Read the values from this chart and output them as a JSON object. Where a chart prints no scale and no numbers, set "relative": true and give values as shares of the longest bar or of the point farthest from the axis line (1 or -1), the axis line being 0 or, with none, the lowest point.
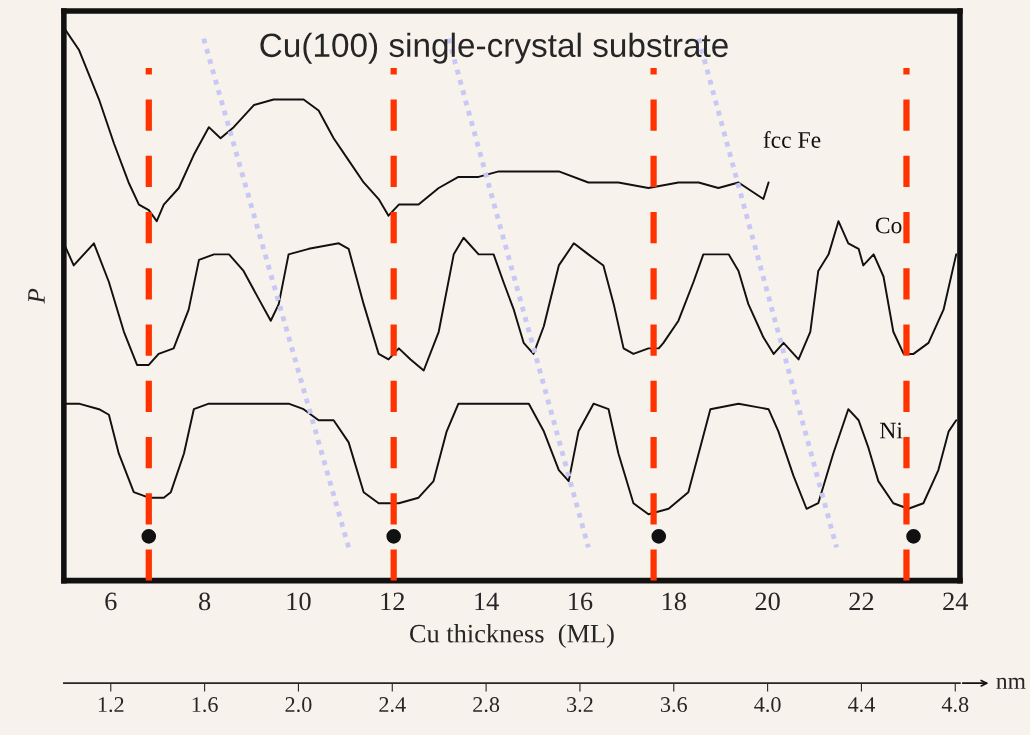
{
  "chart_data": {
    "type": "line",
    "title": "Cu(100) single-crystal substrate",
    "xlabel": "Cu thickness  (ML)",
    "ylabel": "P",
    "x2label": "nm",
    "relative": true,
    "xlim": [
      5,
      24.1
    ],
    "xticks": [
      6,
      8,
      10,
      12,
      14,
      16,
      18,
      20,
      22,
      24
    ],
    "x2lim": [
      1.0,
      4.82
    ],
    "x2ticks": [
      1.2,
      1.6,
      {
        "value": 2,
        "label": "2.0"
      },
      2.4,
      2.8,
      3.2,
      3.6,
      {
        "value": 4,
        "label": "4.0"
      },
      4.4,
      4.8
    ],
    "grid": false,
    "legend": false,
    "marker": "none",
    "line_style": "solid",
    "series": [
      {
        "name": "fcc Fe",
        "color": "#111111",
        "x": [
          5.0,
          5.32,
          5.75,
          6.07,
          6.38,
          6.6,
          6.81,
          6.98,
          7.13,
          7.45,
          7.77,
          8.09,
          8.34,
          8.62,
          9.05,
          9.47,
          9.79,
          10.11,
          10.43,
          10.75,
          11.07,
          11.39,
          11.71,
          11.92,
          12.14,
          12.56,
          12.99,
          13.41,
          13.84,
          14.27,
          14.91,
          15.55,
          16.18,
          16.82,
          17.46,
          18.1,
          18.53,
          18.95,
          19.38,
          19.91,
          20.02
        ],
        "values": [
          1.0,
          0.96,
          0.87,
          0.79,
          0.72,
          0.68,
          0.67,
          0.65,
          0.68,
          0.71,
          0.77,
          0.82,
          0.8,
          0.82,
          0.86,
          0.87,
          0.87,
          0.87,
          0.85,
          0.8,
          0.76,
          0.72,
          0.69,
          0.66,
          0.68,
          0.68,
          0.71,
          0.73,
          0.73,
          0.74,
          0.74,
          0.74,
          0.72,
          0.72,
          0.71,
          0.72,
          0.72,
          0.71,
          0.72,
          0.69,
          0.72
        ]
      },
      {
        "name": "Co",
        "color": "#111111",
        "x": [
          5.0,
          5.21,
          5.64,
          5.96,
          6.28,
          6.56,
          6.81,
          7.02,
          7.34,
          7.66,
          7.88,
          8.2,
          8.52,
          8.83,
          9.15,
          9.41,
          9.58,
          9.79,
          10.22,
          10.86,
          11.07,
          11.39,
          11.71,
          11.92,
          12.14,
          12.39,
          12.67,
          12.99,
          13.31,
          13.52,
          13.84,
          14.16,
          14.37,
          14.59,
          14.8,
          15.01,
          15.23,
          15.55,
          15.87,
          16.18,
          16.5,
          16.72,
          16.93,
          17.14,
          17.46,
          17.68,
          17.78,
          18.1,
          18.42,
          18.63,
          18.95,
          19.17,
          19.38,
          19.59,
          19.91,
          20.13,
          20.34,
          20.66,
          20.91,
          21.08,
          21.3,
          21.51,
          21.72,
          21.94,
          22.04,
          22.26,
          22.47,
          22.68,
          22.9,
          23.11,
          23.43,
          23.75,
          24.02
        ],
        "values": [
          0.61,
          0.57,
          0.61,
          0.54,
          0.45,
          0.39,
          0.39,
          0.41,
          0.42,
          0.49,
          0.58,
          0.59,
          0.59,
          0.56,
          0.51,
          0.47,
          0.5,
          0.59,
          0.6,
          0.61,
          0.6,
          0.5,
          0.41,
          0.4,
          0.42,
          0.4,
          0.38,
          0.45,
          0.59,
          0.62,
          0.59,
          0.59,
          0.54,
          0.49,
          0.43,
          0.41,
          0.46,
          0.57,
          0.61,
          0.59,
          0.57,
          0.5,
          0.42,
          0.41,
          0.42,
          0.42,
          0.43,
          0.47,
          0.54,
          0.59,
          0.59,
          0.59,
          0.56,
          0.5,
          0.44,
          0.41,
          0.43,
          0.4,
          0.45,
          0.56,
          0.59,
          0.65,
          0.61,
          0.6,
          0.57,
          0.59,
          0.55,
          0.45,
          0.41,
          0.41,
          0.43,
          0.49,
          0.59
        ]
      },
      {
        "name": "Ni",
        "color": "#111111",
        "x": [
          5.0,
          5.32,
          5.75,
          5.96,
          6.17,
          6.49,
          6.81,
          7.13,
          7.28,
          7.56,
          7.77,
          8.09,
          8.52,
          9.15,
          9.79,
          10.11,
          10.43,
          10.75,
          11.07,
          11.39,
          11.71,
          12.14,
          12.56,
          12.88,
          13.16,
          13.41,
          13.84,
          14.48,
          14.91,
          15.23,
          15.55,
          15.76,
          15.97,
          16.29,
          16.61,
          16.82,
          17.14,
          17.46,
          17.89,
          18.31,
          18.53,
          18.78,
          19.38,
          20.02,
          20.23,
          20.55,
          20.83,
          21.08,
          21.4,
          21.72,
          21.94,
          22.15,
          22.36,
          22.68,
          23.0,
          23.32,
          23.64,
          23.86,
          24.02
        ],
        "values": [
          0.32,
          0.32,
          0.31,
          0.3,
          0.23,
          0.16,
          0.15,
          0.15,
          0.16,
          0.23,
          0.31,
          0.32,
          0.32,
          0.32,
          0.32,
          0.31,
          0.29,
          0.29,
          0.25,
          0.16,
          0.14,
          0.14,
          0.15,
          0.18,
          0.27,
          0.32,
          0.32,
          0.32,
          0.32,
          0.27,
          0.2,
          0.18,
          0.27,
          0.32,
          0.31,
          0.23,
          0.14,
          0.12,
          0.13,
          0.16,
          0.23,
          0.31,
          0.32,
          0.31,
          0.27,
          0.19,
          0.13,
          0.14,
          0.23,
          0.31,
          0.29,
          0.24,
          0.18,
          0.14,
          0.13,
          0.14,
          0.2,
          0.27,
          0.29
        ]
      },
      {
        "type": "scatter",
        "marker": "circle",
        "color": "#111111",
        "x": [
          6.81,
          12.03,
          17.68,
          23.11
        ],
        "values": [
          0.08,
          0.08,
          0.08,
          0.08
        ]
      },
      {
        "type": "line",
        "line_style": "dotted",
        "color": "#c8c8f5",
        "x": [
          7.98,
          11.07
        ],
        "values": [
          0.98,
          0.06
        ]
      },
      {
        "type": "line",
        "line_style": "dotted",
        "color": "#c8c8f5",
        "x": [
          13.2,
          16.18
        ],
        "values": [
          0.98,
          0.06
        ]
      },
      {
        "type": "line",
        "line_style": "dotted",
        "color": "#c8c8f5",
        "x": [
          18.53,
          21.47
        ],
        "values": [
          0.98,
          0.06
        ]
      }
    ],
    "ref_lines": [
      {
        "axis": "x",
        "value": 6.81,
        "color": "#ff3300",
        "line_style": "dashed"
      },
      {
        "axis": "x",
        "value": 12.03,
        "color": "#ff3300",
        "line_style": "dashed"
      },
      {
        "axis": "x",
        "value": 17.57,
        "color": "#ff3300",
        "line_style": "dashed"
      },
      {
        "axis": "x",
        "value": 22.96,
        "color": "#ff3300",
        "line_style": "dashed"
      }
    ]
  }
}
